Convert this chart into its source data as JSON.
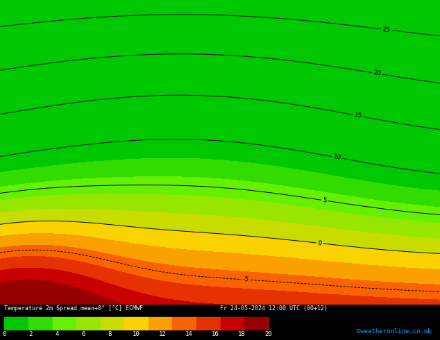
{
  "title": "Temperature 2m Spread mean+0° [°C] ECMWF     Fr 24-05-2024 12:00 UTC (00+12)",
  "colorbar_ticks": [
    0,
    2,
    4,
    6,
    8,
    10,
    12,
    14,
    16,
    18,
    20
  ],
  "colorbar_colors": [
    "#00c800",
    "#32dc00",
    "#64f000",
    "#96e600",
    "#c8dc00",
    "#fad200",
    "#faa000",
    "#fa6400",
    "#e63200",
    "#c80000",
    "#960000"
  ],
  "map_bg": "#00c800",
  "contour_color": "#000000",
  "watermark": "©weatheronline.co.uk",
  "fig_width": 6.34,
  "fig_height": 4.9,
  "dpi": 100,
  "fill_levels": [
    -15,
    -10,
    -8,
    -6,
    -4,
    -2,
    0,
    2,
    4,
    6,
    8,
    10,
    12,
    14,
    16,
    18,
    20,
    22,
    25,
    30
  ],
  "fill_colors": [
    "#960000",
    "#c80000",
    "#e63200",
    "#fa6400",
    "#faa000",
    "#fad200",
    "#c8dc00",
    "#96e600",
    "#64f000",
    "#32dc00",
    "#00c800",
    "#00c800",
    "#00c800",
    "#00c800",
    "#00c800",
    "#00c800",
    "#00c800",
    "#00c800",
    "#00c800"
  ],
  "contour_levels": [
    -5,
    0,
    5,
    10,
    15,
    20,
    25
  ]
}
